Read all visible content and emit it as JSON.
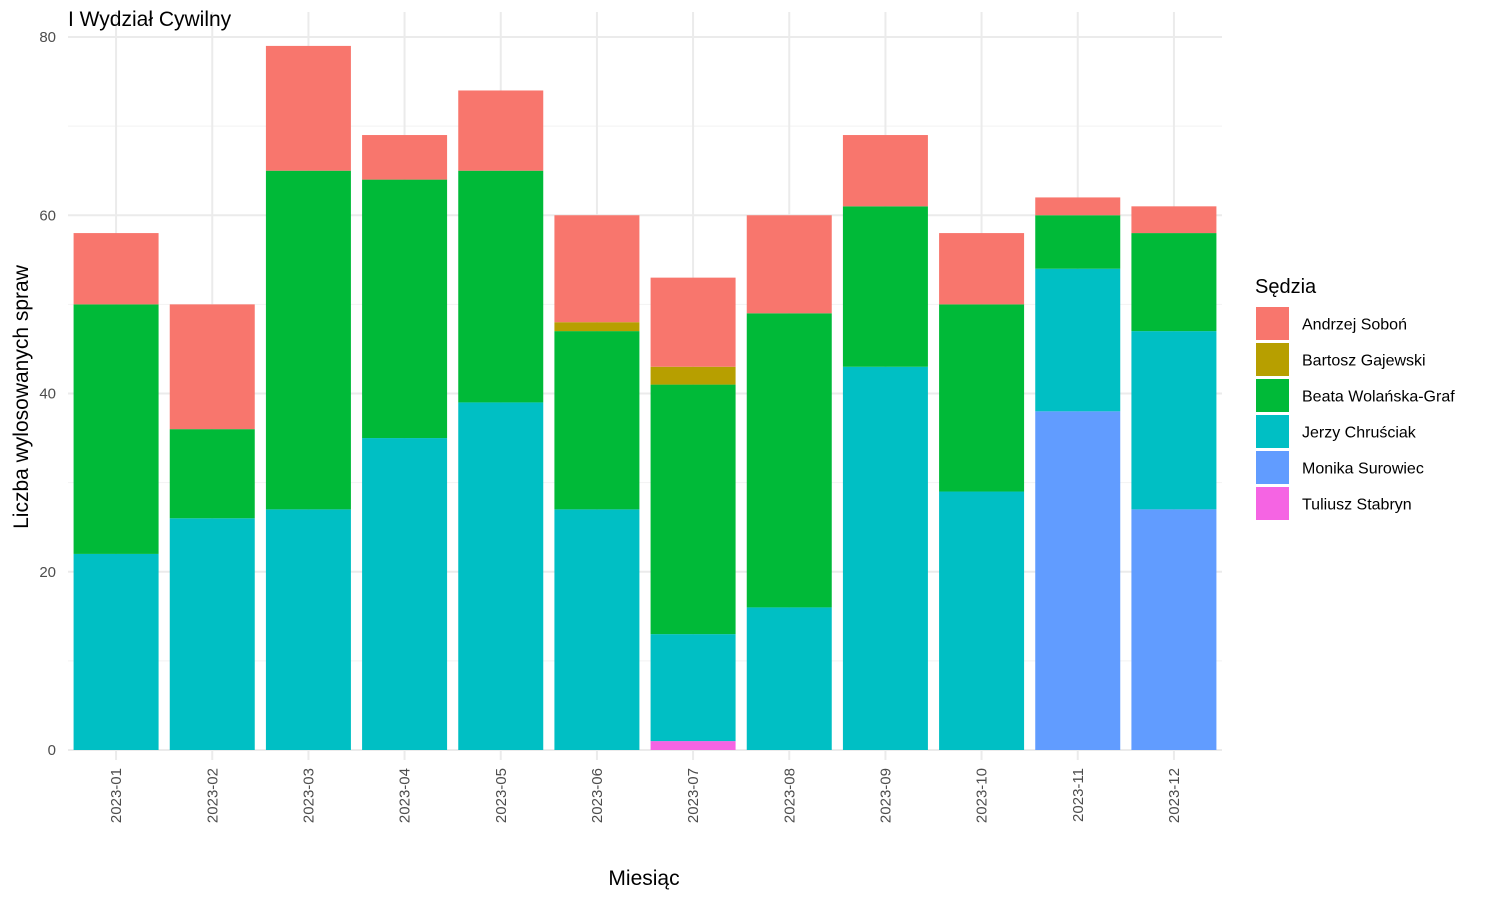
{
  "chart_data": {
    "type": "bar",
    "stacked": true,
    "title": "I Wydział Cywilny",
    "xlabel": "Miesiąc",
    "ylabel": "Liczba wylosowanych spraw",
    "ylim": [
      0,
      80
    ],
    "yticks": [
      0,
      20,
      40,
      60,
      80
    ],
    "grid": true,
    "legend_title": "Sędzia",
    "legend_position": "right",
    "categories": [
      "2023-01",
      "2023-02",
      "2023-03",
      "2023-04",
      "2023-05",
      "2023-06",
      "2023-07",
      "2023-08",
      "2023-09",
      "2023-10",
      "2023-11",
      "2023-12"
    ],
    "series": [
      {
        "name": "Andrzej Soboń",
        "color": "#F8766D",
        "values": [
          8,
          14,
          14,
          5,
          9,
          12,
          10,
          11,
          8,
          8,
          2,
          3
        ]
      },
      {
        "name": "Bartosz Gajewski",
        "color": "#B79F00",
        "values": [
          0,
          0,
          0,
          0,
          0,
          1,
          2,
          0,
          0,
          0,
          0,
          0
        ]
      },
      {
        "name": "Beata Wolańska-Graf",
        "color": "#00BA38",
        "values": [
          28,
          10,
          38,
          29,
          26,
          20,
          28,
          33,
          18,
          21,
          6,
          11
        ]
      },
      {
        "name": "Jerzy Chruściak",
        "color": "#00BFC4",
        "values": [
          22,
          26,
          27,
          35,
          39,
          27,
          12,
          16,
          43,
          29,
          16,
          20
        ]
      },
      {
        "name": "Monika Surowiec",
        "color": "#619CFF",
        "values": [
          0,
          0,
          0,
          0,
          0,
          0,
          0,
          0,
          0,
          0,
          38,
          27
        ]
      },
      {
        "name": "Tuliusz Stabryn",
        "color": "#F564E3",
        "values": [
          0,
          0,
          0,
          0,
          0,
          0,
          1,
          0,
          0,
          0,
          0,
          0
        ]
      }
    ],
    "stack_order_bottom_to_top": [
      "Tuliusz Stabryn",
      "Monika Surowiec",
      "Jerzy Chruściak",
      "Beata Wolańska-Graf",
      "Bartosz Gajewski",
      "Andrzej Soboń"
    ]
  }
}
